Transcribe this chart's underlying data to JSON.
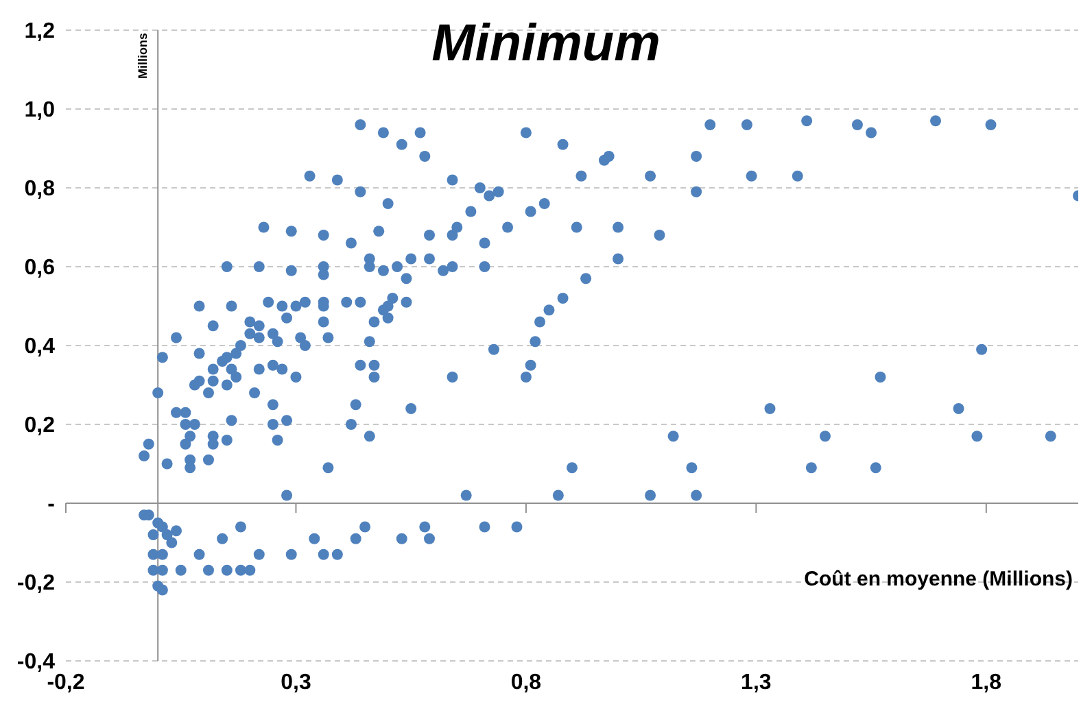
{
  "chart_data": {
    "type": "scatter",
    "title": "Minimum",
    "xlabel": "Coût en moyenne (Millions)",
    "ylabel": "Millions",
    "xlim": [
      -0.2,
      2.0
    ],
    "xticks": [
      {
        "value": -0.2,
        "label": "-0,2"
      },
      {
        "value": 0.3,
        "label": "0,3"
      },
      {
        "value": 0.8,
        "label": "0,8"
      },
      {
        "value": 1.3,
        "label": "1,3"
      },
      {
        "value": 1.8,
        "label": "1,8"
      }
    ],
    "ylim": [
      -0.4,
      1.2
    ],
    "yticks": [
      {
        "value": -0.4,
        "label": "-0,4"
      },
      {
        "value": -0.2,
        "label": "-0,2"
      },
      {
        "value": 0,
        "label": "-"
      },
      {
        "value": 0.2,
        "label": "0,2"
      },
      {
        "value": 0.4,
        "label": "0,4"
      },
      {
        "value": 0.6,
        "label": "0,6"
      },
      {
        "value": 0.8,
        "label": "0,8"
      },
      {
        "value": 1.0,
        "label": "1,0"
      },
      {
        "value": 1.2,
        "label": "1,2"
      }
    ],
    "grid": "y",
    "marker": "circle",
    "series": [
      {
        "color": "#4f81bd",
        "x": [
          0.44,
          0.49,
          0.53,
          0.57,
          0.58,
          0.33,
          0.39,
          0.44,
          0.5,
          0.64,
          0.23,
          0.29,
          0.36,
          0.42,
          0.48,
          0.59,
          0.64,
          0.65,
          0.15,
          0.22,
          0.29,
          0.36,
          0.36,
          0.46,
          0.46,
          0.49,
          0.52,
          0.55,
          0.59,
          0.62,
          0.64,
          0.54,
          0.09,
          0.16,
          0.24,
          0.27,
          0.3,
          0.32,
          0.36,
          0.36,
          0.41,
          0.44,
          0.54,
          0.51,
          0.5,
          0.49,
          0.28,
          0.36,
          0.47,
          0.5,
          0.12,
          0.2,
          0.22,
          0.2,
          0.22,
          0.25,
          0.26,
          0.31,
          0.37,
          0.04,
          0.46,
          0.01,
          0.09,
          0.12,
          0.14,
          0.15,
          0.17,
          0.18,
          0.16,
          0.17,
          0.12,
          0.09,
          0.08,
          0.11,
          0.15,
          0.21,
          0.22,
          0.25,
          0.27,
          0.3,
          0.32,
          0.0,
          0.04,
          0.06,
          0.06,
          0.08,
          0.16,
          0.12,
          0.12,
          0.07,
          0.06,
          0.15,
          -0.02,
          -0.03,
          0.02,
          0.07,
          0.07,
          0.11,
          0.25,
          0.25,
          0.28,
          0.26,
          0.37,
          0.28,
          0.43,
          0.42,
          0.46,
          0.55,
          0.44,
          0.47,
          0.47,
          0.64,
          -0.03,
          -0.02,
          0.0,
          0.01,
          0.02,
          0.04,
          0.03,
          -0.01,
          -0.01,
          0.01,
          -0.01,
          0.01,
          0.0,
          0.01,
          0.05,
          0.09,
          0.11,
          0.14,
          0.15,
          0.18,
          0.2,
          0.18,
          0.22,
          0.29,
          0.34,
          0.36,
          0.39,
          0.43,
          0.45,
          0.53,
          0.58,
          0.59,
          0.8,
          0.88,
          0.97,
          0.98,
          0.92,
          1.07,
          1.17,
          1.2,
          1.28,
          1.29,
          1.17,
          0.7,
          0.72,
          0.74,
          0.68,
          0.76,
          0.81,
          0.84,
          0.91,
          1.0,
          1.09,
          0.71,
          0.71,
          1.0,
          0.93,
          0.88,
          0.85,
          0.83,
          0.82,
          0.73,
          1.41,
          1.52,
          1.55,
          1.69,
          1.81,
          1.39,
          2.0,
          1.79,
          0.81,
          0.8,
          0.67,
          0.87,
          0.9,
          1.07,
          1.12,
          1.16,
          1.17,
          0.71,
          0.78,
          1.33,
          1.57,
          1.74,
          1.45,
          1.78,
          1.94,
          1.42,
          1.56
        ],
        "values": [
          0.96,
          0.94,
          0.91,
          0.94,
          0.88,
          0.83,
          0.82,
          0.79,
          0.76,
          0.82,
          0.7,
          0.69,
          0.68,
          0.66,
          0.69,
          0.68,
          0.68,
          0.7,
          0.6,
          0.6,
          0.59,
          0.6,
          0.58,
          0.62,
          0.6,
          0.59,
          0.6,
          0.62,
          0.62,
          0.59,
          0.6,
          0.57,
          0.5,
          0.5,
          0.51,
          0.5,
          0.5,
          0.51,
          0.51,
          0.5,
          0.51,
          0.51,
          0.51,
          0.52,
          0.5,
          0.49,
          0.47,
          0.46,
          0.46,
          0.47,
          0.45,
          0.46,
          0.45,
          0.43,
          0.42,
          0.43,
          0.41,
          0.42,
          0.42,
          0.42,
          0.41,
          0.37,
          0.38,
          0.34,
          0.36,
          0.37,
          0.38,
          0.4,
          0.34,
          0.32,
          0.31,
          0.31,
          0.3,
          0.28,
          0.3,
          0.28,
          0.34,
          0.35,
          0.34,
          0.32,
          0.4,
          0.28,
          0.23,
          0.23,
          0.2,
          0.2,
          0.21,
          0.17,
          0.15,
          0.17,
          0.15,
          0.16,
          0.15,
          0.12,
          0.1,
          0.11,
          0.09,
          0.11,
          0.25,
          0.2,
          0.21,
          0.16,
          0.09,
          0.02,
          0.25,
          0.2,
          0.17,
          0.24,
          0.35,
          0.35,
          0.32,
          0.32,
          -0.03,
          -0.03,
          -0.05,
          -0.06,
          -0.08,
          -0.07,
          -0.1,
          -0.08,
          -0.13,
          -0.13,
          -0.17,
          -0.17,
          -0.21,
          -0.22,
          -0.17,
          -0.13,
          -0.17,
          -0.09,
          -0.17,
          -0.17,
          -0.17,
          -0.06,
          -0.13,
          -0.13,
          -0.09,
          -0.13,
          -0.13,
          -0.09,
          -0.06,
          -0.09,
          -0.06,
          -0.09,
          0.94,
          0.91,
          0.87,
          0.88,
          0.83,
          0.83,
          0.88,
          0.96,
          0.96,
          0.83,
          0.79,
          0.8,
          0.78,
          0.79,
          0.74,
          0.7,
          0.74,
          0.76,
          0.7,
          0.7,
          0.68,
          0.66,
          0.6,
          0.62,
          0.57,
          0.52,
          0.49,
          0.46,
          0.41,
          0.39,
          0.97,
          0.96,
          0.94,
          0.97,
          0.96,
          0.83,
          0.78,
          0.39,
          0.35,
          0.32,
          0.02,
          0.02,
          0.09,
          0.02,
          0.17,
          0.09,
          0.02,
          -0.06,
          -0.06,
          0.24,
          0.32,
          0.24,
          0.17,
          0.17,
          0.17,
          0.09,
          0.09
        ]
      }
    ]
  }
}
